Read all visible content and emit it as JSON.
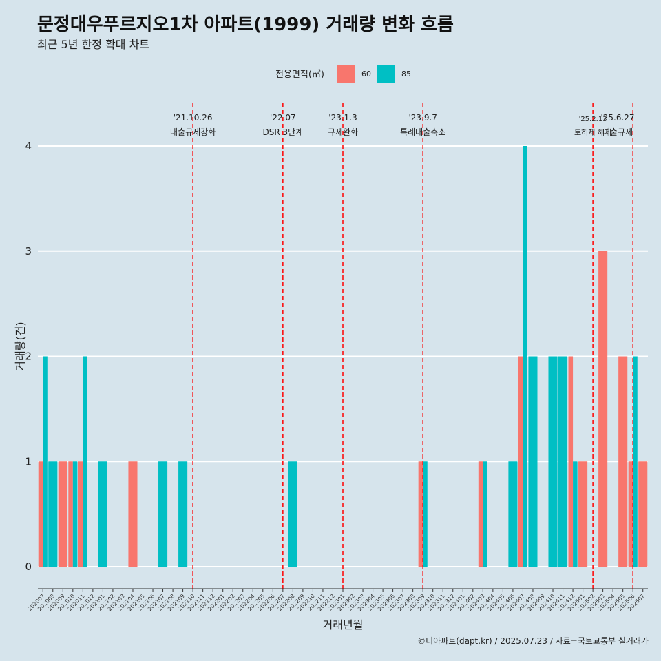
{
  "chart_data": {
    "type": "bar",
    "title": "문정대우푸르지오1차 아파트(1999) 거래량 변화 흐름",
    "subtitle": "최근 5년 한정 확대 차트",
    "xlabel": "거래년월",
    "ylabel": "거래량(건)",
    "ylim": [
      0,
      4
    ],
    "yticks": [
      0,
      1,
      2,
      3,
      4
    ],
    "legend": {
      "title": "전용면적(㎡)",
      "position": "top"
    },
    "categories": [
      "202007",
      "202008",
      "202009",
      "202010",
      "202011",
      "202012",
      "202101",
      "202102",
      "202103",
      "202104",
      "202105",
      "202106",
      "202107",
      "202108",
      "202109",
      "202110",
      "202111",
      "202112",
      "202201",
      "202202",
      "202203",
      "202204",
      "202205",
      "202206",
      "202207",
      "202208",
      "202209",
      "202210",
      "202211",
      "202212",
      "202301",
      "202302",
      "202303",
      "202304",
      "202305",
      "202306",
      "202307",
      "202308",
      "202309",
      "202310",
      "202311",
      "202312",
      "202401",
      "202402",
      "202403",
      "202404",
      "202405",
      "202406",
      "202407",
      "202408",
      "202409",
      "202410",
      "202411",
      "202412",
      "202501",
      "202502",
      "202503",
      "202504",
      "202505",
      "202506",
      "202507"
    ],
    "series": [
      {
        "name": "60",
        "color": "#f8766d",
        "values": [
          1,
          0,
          1,
          1,
          1,
          0,
          0,
          0,
          0,
          1,
          0,
          0,
          0,
          0,
          0,
          0,
          0,
          0,
          0,
          0,
          0,
          0,
          0,
          0,
          0,
          0,
          0,
          0,
          0,
          0,
          0,
          0,
          0,
          0,
          0,
          0,
          0,
          0,
          1,
          0,
          0,
          0,
          0,
          0,
          1,
          0,
          0,
          0,
          2,
          0,
          0,
          0,
          0,
          2,
          1,
          0,
          3,
          0,
          2,
          1,
          1
        ]
      },
      {
        "name": "85",
        "color": "#00bfc4",
        "values": [
          2,
          1,
          0,
          1,
          2,
          0,
          1,
          0,
          0,
          0,
          0,
          0,
          1,
          0,
          1,
          0,
          0,
          0,
          0,
          0,
          0,
          0,
          0,
          0,
          0,
          1,
          0,
          0,
          0,
          0,
          0,
          0,
          0,
          0,
          0,
          0,
          0,
          0,
          1,
          0,
          0,
          0,
          0,
          0,
          1,
          0,
          0,
          1,
          4,
          2,
          0,
          2,
          2,
          1,
          0,
          0,
          0,
          0,
          0,
          2,
          0
        ]
      }
    ],
    "events": [
      {
        "month": "202110",
        "date": "'21.10.26",
        "label": "대출규제강화",
        "style": "large"
      },
      {
        "month": "202207",
        "date": "'22.07",
        "label": "DSR 3단계",
        "style": "large"
      },
      {
        "month": "202301",
        "date": "'23.1.3",
        "label": "규제완화",
        "style": "large"
      },
      {
        "month": "202309",
        "date": "'23.9.7",
        "label": "특례대출축소",
        "style": "large"
      },
      {
        "month": "202502",
        "date": "'25.2.13",
        "label": "토허제 해제",
        "style": "small"
      },
      {
        "month": "202506",
        "date": "'25.6.27",
        "label": "대출규제",
        "style": "large"
      }
    ]
  },
  "caption": "©디아파트(dapt.kr) / 2025.07.23 / 자료=국토교통부 실거래가"
}
